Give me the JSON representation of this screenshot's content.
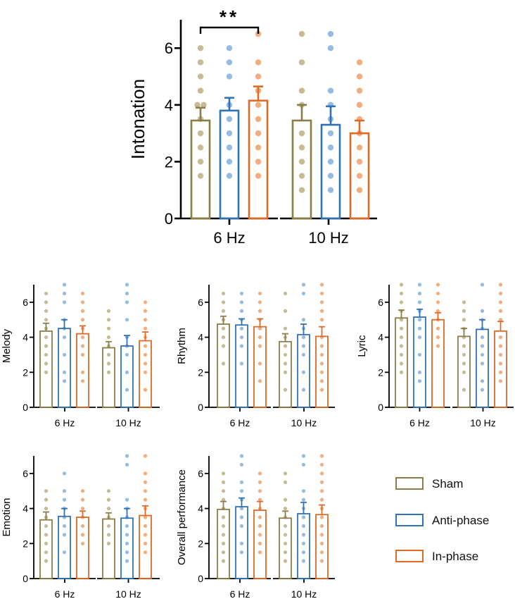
{
  "colors": {
    "sham": "#8b7d45",
    "anti": "#2f73b5",
    "in": "#de6a26",
    "sham_dot": "#c3b78f",
    "anti_dot": "#8fb7df",
    "in_dot": "#f2a876"
  },
  "legend": [
    {
      "label": "Sham",
      "color": "#8b7d45"
    },
    {
      "label": "Anti-phase",
      "color": "#2f73b5"
    },
    {
      "label": "In-phase",
      "color": "#de6a26"
    }
  ],
  "chart_data": [
    {
      "id": "intonation",
      "type": "bar",
      "ylabel": "Intonation",
      "categories": [
        "6 Hz",
        "10 Hz"
      ],
      "ylim": [
        0,
        7
      ],
      "yticks": [
        0,
        2,
        4,
        6
      ],
      "significance": {
        "label": "**",
        "between": [
          "6 Hz Sham",
          "6 Hz In-phase"
        ]
      },
      "series": [
        {
          "name": "Sham",
          "means": [
            3.45,
            3.45
          ],
          "sem": [
            0.45,
            0.55
          ],
          "points": [
            [
              1.5,
              2,
              2.5,
              3,
              3.5,
              4,
              4,
              4.5,
              5,
              5.5,
              6
            ],
            [
              1,
              1.5,
              2,
              2.5,
              3,
              4,
              4.5,
              5.5,
              6.5
            ]
          ]
        },
        {
          "name": "Anti-phase",
          "means": [
            3.8,
            3.3
          ],
          "sem": [
            0.45,
            0.65
          ],
          "points": [
            [
              1.5,
              2,
              2.5,
              3,
              3.5,
              4,
              5,
              5.5,
              6
            ],
            [
              1,
              1.5,
              2,
              2.5,
              3,
              3.5,
              4,
              4.5,
              6,
              6.5
            ]
          ]
        },
        {
          "name": "In-phase",
          "means": [
            4.15,
            3.0
          ],
          "sem": [
            0.5,
            0.45
          ],
          "points": [
            [
              1.5,
              2,
              2.5,
              3,
              3.5,
              4,
              4.5,
              5,
              5.5,
              6.5
            ],
            [
              1,
              1.5,
              2,
              2.5,
              3,
              3.5,
              4,
              4.5,
              5,
              5.5
            ]
          ]
        }
      ]
    },
    {
      "id": "melody",
      "type": "bar",
      "ylabel": "Melody",
      "categories": [
        "6 Hz",
        "10 Hz"
      ],
      "ylim": [
        0,
        7
      ],
      "yticks": [
        0,
        2,
        4,
        6
      ],
      "series": [
        {
          "name": "Sham",
          "means": [
            4.35,
            3.4
          ],
          "sem": [
            0.45,
            0.35
          ],
          "points": [
            [
              2,
              2.5,
              3,
              3.5,
              4,
              4.5,
              5,
              5.5,
              6,
              6.5
            ],
            [
              2,
              2.5,
              3,
              3.5,
              4,
              4.5,
              5,
              5.5
            ]
          ]
        },
        {
          "name": "Anti-phase",
          "means": [
            4.5,
            3.5
          ],
          "sem": [
            0.5,
            0.6
          ],
          "points": [
            [
              1.5,
              2,
              3,
              4,
              4.5,
              5,
              6,
              6.5,
              7
            ],
            [
              1,
              2,
              3,
              3.5,
              4,
              5,
              6,
              6.5,
              7
            ]
          ]
        },
        {
          "name": "In-phase",
          "means": [
            4.2,
            3.8
          ],
          "sem": [
            0.45,
            0.5
          ],
          "points": [
            [
              1.5,
              2,
              3,
              3.5,
              4,
              4.5,
              5,
              5.5,
              6,
              6.5
            ],
            [
              1,
              2,
              2.5,
              3,
              3.5,
              4,
              4.5,
              5,
              5.5,
              6
            ]
          ]
        }
      ]
    },
    {
      "id": "rhythm",
      "type": "bar",
      "ylabel": "Rhythm",
      "categories": [
        "6 Hz",
        "10 Hz"
      ],
      "ylim": [
        0,
        7
      ],
      "yticks": [
        0,
        2,
        4,
        6
      ],
      "series": [
        {
          "name": "Sham",
          "means": [
            4.75,
            3.75
          ],
          "sem": [
            0.45,
            0.45
          ],
          "points": [
            [
              2.5,
              3.5,
              4,
              4.5,
              5,
              5.5,
              6,
              6.5
            ],
            [
              1,
              2,
              2.5,
              3,
              3.5,
              4,
              4.5,
              5.5,
              6.5
            ]
          ]
        },
        {
          "name": "Anti-phase",
          "means": [
            4.7,
            4.15
          ],
          "sem": [
            0.35,
            0.6
          ],
          "points": [
            [
              2.5,
              3.5,
              4,
              4.5,
              5,
              5.5,
              6,
              6.5
            ],
            [
              1,
              2,
              3,
              3.5,
              4,
              4.5,
              5,
              6.5,
              7
            ]
          ]
        },
        {
          "name": "In-phase",
          "means": [
            4.6,
            4.05
          ],
          "sem": [
            0.45,
            0.55
          ],
          "points": [
            [
              1.5,
              2.5,
              3.5,
              4,
              4.5,
              5,
              5.5,
              6,
              6.5
            ],
            [
              1,
              1.5,
              2,
              2.5,
              3,
              3.5,
              4,
              5,
              5.5,
              6,
              6.5,
              7
            ]
          ]
        }
      ]
    },
    {
      "id": "lyric",
      "type": "bar",
      "ylabel": "Lyric",
      "categories": [
        "6 Hz",
        "10 Hz"
      ],
      "ylim": [
        0,
        7
      ],
      "yticks": [
        0,
        2,
        4,
        6
      ],
      "series": [
        {
          "name": "Sham",
          "means": [
            5.1,
            4.05
          ],
          "sem": [
            0.45,
            0.45
          ],
          "points": [
            [
              2,
              2.5,
              3,
              3.5,
              4,
              4.5,
              5,
              5.5,
              6,
              6.5,
              7
            ],
            [
              1,
              2,
              2.5,
              3,
              3.5,
              4,
              4.5,
              5,
              5.5,
              6
            ]
          ]
        },
        {
          "name": "Anti-phase",
          "means": [
            5.15,
            4.45
          ],
          "sem": [
            0.45,
            0.55
          ],
          "points": [
            [
              1.5,
              2,
              3,
              4,
              4.5,
              5,
              5.5,
              6,
              6.5,
              7
            ],
            [
              1,
              1.5,
              2.5,
              3,
              3.5,
              4,
              4.5,
              5,
              5.5,
              7
            ]
          ]
        },
        {
          "name": "In-phase",
          "means": [
            5.0,
            4.35
          ],
          "sem": [
            0.4,
            0.55
          ],
          "points": [
            [
              3.5,
              4,
              4.5,
              5,
              5.5,
              6,
              6.5,
              7
            ],
            [
              1.5,
              2,
              2.5,
              3,
              3.5,
              4,
              5,
              5.5,
              6,
              6.5,
              7
            ]
          ]
        }
      ]
    },
    {
      "id": "emotion",
      "type": "bar",
      "ylabel": "Emotion",
      "categories": [
        "6 Hz",
        "10 Hz"
      ],
      "ylim": [
        0,
        7
      ],
      "yticks": [
        0,
        2,
        4,
        6
      ],
      "series": [
        {
          "name": "Sham",
          "means": [
            3.35,
            3.4
          ],
          "sem": [
            0.45,
            0.35
          ],
          "points": [
            [
              1,
              1.5,
              2,
              2.5,
              3,
              3.5,
              4,
              4.5,
              5
            ],
            [
              2,
              2.5,
              3,
              3.5,
              4,
              4.5,
              5
            ]
          ]
        },
        {
          "name": "Anti-phase",
          "means": [
            3.55,
            3.45
          ],
          "sem": [
            0.45,
            0.55
          ],
          "points": [
            [
              1.5,
              2.5,
              3,
              3.5,
              4,
              4.5,
              5,
              6
            ],
            [
              1,
              1.5,
              2,
              2.5,
              3,
              3.5,
              4,
              4.5,
              6.5,
              7
            ]
          ]
        },
        {
          "name": "In-phase",
          "means": [
            3.5,
            3.6
          ],
          "sem": [
            0.35,
            0.55
          ],
          "points": [
            [
              2,
              2.5,
              3,
              3.5,
              4,
              4.5,
              5
            ],
            [
              1.5,
              2,
              2.5,
              3,
              3.5,
              4,
              4.5,
              5,
              5.5,
              6,
              7
            ]
          ]
        }
      ]
    },
    {
      "id": "overall",
      "type": "bar",
      "ylabel": "Overall performance",
      "categories": [
        "6 Hz",
        "10 Hz"
      ],
      "ylim": [
        0,
        7
      ],
      "yticks": [
        0,
        2,
        4,
        6
      ],
      "series": [
        {
          "name": "Sham",
          "means": [
            3.95,
            3.45
          ],
          "sem": [
            0.45,
            0.4
          ],
          "points": [
            [
              1,
              1.5,
              2,
              2.5,
              3,
              3.5,
              4,
              4.5,
              5,
              5.5,
              6
            ],
            [
              1,
              1.5,
              2,
              2.5,
              3,
              3.5,
              4,
              4.5,
              5.5,
              6
            ]
          ]
        },
        {
          "name": "Anti-phase",
          "means": [
            4.1,
            3.7
          ],
          "sem": [
            0.5,
            0.65
          ],
          "points": [
            [
              1.5,
              2,
              3,
              3.5,
              4,
              4.5,
              5,
              5.5,
              6.5,
              7
            ],
            [
              1,
              1.5,
              2,
              2.5,
              3,
              3.5,
              4,
              4.5,
              5,
              6.5,
              7
            ]
          ]
        },
        {
          "name": "In-phase",
          "means": [
            3.9,
            3.65
          ],
          "sem": [
            0.5,
            0.55
          ],
          "points": [
            [
              1.5,
              2,
              2.5,
              3,
              3.5,
              4,
              4.5,
              5,
              5.5,
              6
            ],
            [
              1,
              1.5,
              2,
              2.5,
              3,
              3.5,
              4,
              4.5,
              5,
              5.5,
              6,
              6.5,
              7
            ]
          ]
        }
      ]
    }
  ]
}
